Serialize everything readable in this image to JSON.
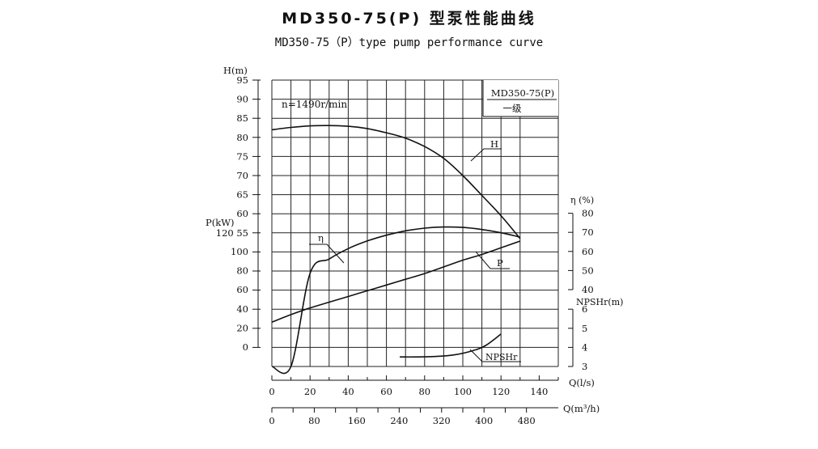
{
  "title": "MD350-75(P) 型泵性能曲线",
  "subtitle": "MD350-75（P）type pump performance curve",
  "chart_data": {
    "type": "line",
    "speed_label": "n=1490r/min",
    "model_label": "MD350-75(P)",
    "stage_label": "一级",
    "axes": {
      "head": {
        "label": "H(m)",
        "ticks": [
          55,
          60,
          65,
          70,
          75,
          80,
          85,
          90,
          95
        ],
        "range": [
          50,
          95
        ]
      },
      "power": {
        "label": "P(kW)",
        "ticks": [
          0,
          20,
          40,
          60,
          80,
          100,
          120
        ],
        "range": [
          0,
          120
        ]
      },
      "efficiency": {
        "label": "η (%)",
        "ticks": [
          40,
          50,
          60,
          70,
          80
        ],
        "range": [
          40,
          80
        ]
      },
      "npsh": {
        "label": "NPSHr(m)",
        "ticks": [
          3,
          4,
          5,
          6
        ],
        "range": [
          3,
          6
        ]
      },
      "flow_ls": {
        "label": "Q(l/s)",
        "ticks": [
          0,
          20,
          40,
          60,
          80,
          100,
          120,
          140
        ],
        "range": [
          0,
          140
        ]
      },
      "flow_m3h": {
        "label": "Q(m³/h)",
        "ticks": [
          0,
          80,
          160,
          240,
          320,
          400,
          480
        ]
      }
    },
    "series": [
      {
        "name": "H",
        "axis": "head",
        "x": [
          0,
          10,
          20,
          30,
          40,
          50,
          60,
          70,
          80,
          90,
          100,
          110,
          120,
          130
        ],
        "y": [
          82.0,
          82.6,
          83.0,
          83.1,
          82.9,
          82.3,
          81.2,
          79.8,
          77.6,
          74.5,
          70.0,
          64.8,
          59.5,
          53.5
        ]
      },
      {
        "name": "η",
        "axis": "efficiency",
        "x": [
          0,
          10,
          20,
          30,
          40,
          50,
          60,
          70,
          80,
          90,
          100,
          110,
          120,
          130
        ],
        "y": [
          0,
          36.5,
          48.5,
          56.0,
          61.5,
          65.5,
          68.5,
          70.8,
          72.2,
          72.8,
          72.6,
          71.5,
          69.8,
          67.5
        ]
      },
      {
        "name": "P",
        "axis": "power",
        "x": [
          0,
          10,
          20,
          30,
          40,
          50,
          60,
          70,
          80,
          90,
          100,
          110,
          120,
          130
        ],
        "y": [
          26,
          34,
          41,
          47,
          53,
          59,
          65,
          71,
          77,
          84,
          91,
          97,
          104,
          111
        ]
      },
      {
        "name": "NPSHr",
        "axis": "npsh",
        "x": [
          67,
          75,
          85,
          95,
          105,
          112,
          120
        ],
        "y": [
          3.5,
          3.5,
          3.52,
          3.6,
          3.82,
          4.1,
          4.7
        ]
      }
    ]
  }
}
